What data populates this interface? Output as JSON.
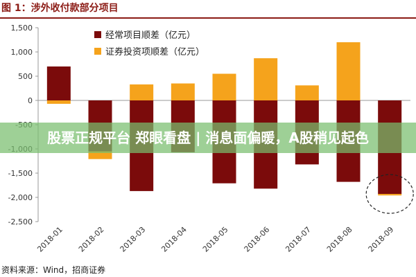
{
  "figure_title": "图 1：涉外收付款部分项目",
  "banner_text": "股票正规平台 郑眼看盘 | 消息面偏暖，A股稍见起色",
  "source_text": "资料来源：Wind，招商证券",
  "colors": {
    "current_account": "#7b0b0b",
    "securities": "#f5a31c",
    "axis": "#999999",
    "title": "#8b1a14",
    "banner_bg": "#78be6e"
  },
  "chart_data": {
    "type": "bar",
    "stacked": true,
    "categories": [
      "2018-01",
      "2018-02",
      "2018-03",
      "2018-04",
      "2018-05",
      "2018-06",
      "2018-07",
      "2018-08",
      "2018-09"
    ],
    "series": [
      {
        "name": "经常项目顺差（亿元）",
        "color": "#7b0b0b",
        "values": [
          700,
          -1050,
          -1870,
          -1070,
          -1710,
          -1820,
          -1320,
          -1680,
          -1930
        ]
      },
      {
        "name": "证券投资项顺差（亿元）",
        "color": "#f5a31c",
        "values": [
          -70,
          -160,
          330,
          350,
          550,
          870,
          310,
          1200,
          -30
        ]
      }
    ],
    "y_ticks": [
      1500,
      1000,
      500,
      0,
      -500,
      -1000,
      -1500,
      -2000,
      -2500
    ],
    "y_tick_labels": [
      "1,500",
      "1,000",
      "500",
      "0",
      "-500",
      "-1,000",
      "-1,500",
      "-2,000",
      "-2,500"
    ],
    "ylim": [
      -2500,
      1500
    ],
    "grid": false,
    "legend_position": "top-center",
    "xlabel": "",
    "ylabel": "",
    "annotation": "dashed ellipse around 2018-09 bar"
  }
}
